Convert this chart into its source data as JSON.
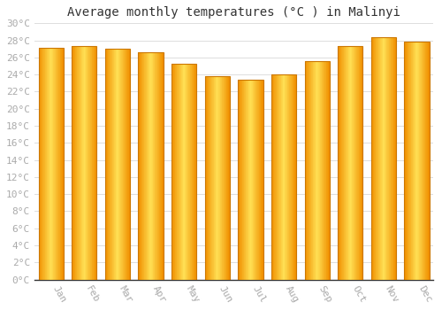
{
  "title": "Average monthly temperatures (°C ) in Malinyi",
  "months": [
    "Jan",
    "Feb",
    "Mar",
    "Apr",
    "May",
    "Jun",
    "Jul",
    "Aug",
    "Sep",
    "Oct",
    "Nov",
    "Dec"
  ],
  "values": [
    27.1,
    27.3,
    27.0,
    26.6,
    25.3,
    23.8,
    23.4,
    24.0,
    25.6,
    27.3,
    28.4,
    27.9
  ],
  "bar_color_edge": "#E8860A",
  "bar_color_center": "#FFD740",
  "bar_color_outer": "#F5A623",
  "ylim": [
    0,
    30
  ],
  "ytick_step": 2,
  "background_color": "#ffffff",
  "plot_bg_color": "#ffffff",
  "grid_color": "#dddddd",
  "title_fontsize": 10,
  "tick_fontsize": 8,
  "bar_width": 0.75
}
